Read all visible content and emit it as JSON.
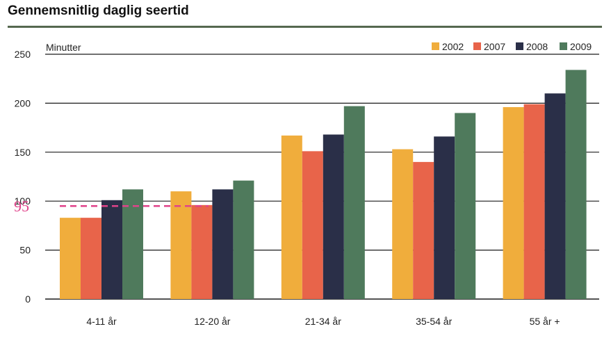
{
  "chart_data": {
    "type": "bar",
    "title": "Gennemsnitlig daglig seertid",
    "ylabel": "Minutter",
    "ylim": [
      0,
      250
    ],
    "yticks": [
      0,
      50,
      100,
      150,
      200,
      250
    ],
    "grid": true,
    "legend_position": "top-right",
    "categories": [
      "4-11 år",
      "12-20 år",
      "21-34 år",
      "35-54 år",
      "55 år +"
    ],
    "series": [
      {
        "name": "2002",
        "color": "#f0ad3c",
        "values": [
          83,
          110,
          167,
          153,
          196
        ]
      },
      {
        "name": "2007",
        "color": "#e8644a",
        "values": [
          83,
          96,
          151,
          140,
          199
        ]
      },
      {
        "name": "2008",
        "color": "#2a2f48",
        "values": [
          101,
          112,
          168,
          166,
          210
        ]
      },
      {
        "name": "2009",
        "color": "#4f7a5c",
        "values": [
          112,
          121,
          197,
          190,
          234
        ]
      }
    ],
    "annotation": {
      "label": "95",
      "value": 95,
      "color": "#e0438a"
    }
  }
}
